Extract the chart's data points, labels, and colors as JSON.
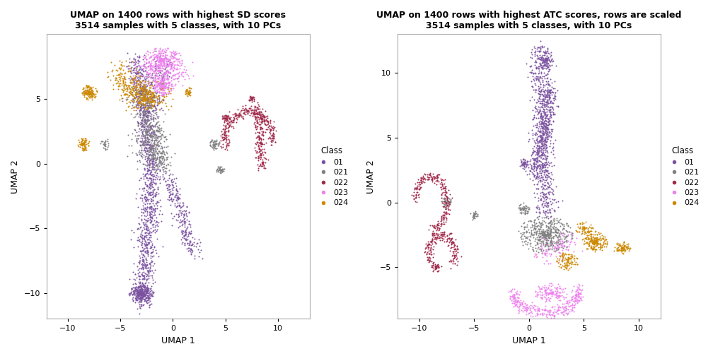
{
  "title1": "UMAP on 1400 rows with highest SD scores\n3514 samples with 5 classes, with 10 PCs",
  "title2": "UMAP on 1400 rows with highest ATC scores, rows are scaled\n3514 samples with 5 classes, with 10 PCs",
  "xlabel": "UMAP 1",
  "ylabel": "UMAP 2",
  "classes": [
    "01",
    "021",
    "022",
    "023",
    "024"
  ],
  "colors": [
    "#7B52A0",
    "#808080",
    "#A0294A",
    "#EE82EE",
    "#CC8800"
  ],
  "xlim1": [
    -12,
    13
  ],
  "ylim1": [
    -12,
    10
  ],
  "xticks1": [
    -10,
    -5,
    0,
    5,
    10
  ],
  "yticks1": [
    -10,
    -5,
    0,
    5
  ],
  "xlim2": [
    -12,
    12
  ],
  "ylim2": [
    -9,
    13
  ],
  "xticks2": [
    -10,
    -5,
    0,
    5,
    10
  ],
  "yticks2": [
    -5,
    0,
    5,
    10
  ],
  "point_size": 2,
  "alpha": 1.0,
  "background": "#FFFFFF",
  "legend_title": "Class",
  "spine_color": "#AAAAAA"
}
